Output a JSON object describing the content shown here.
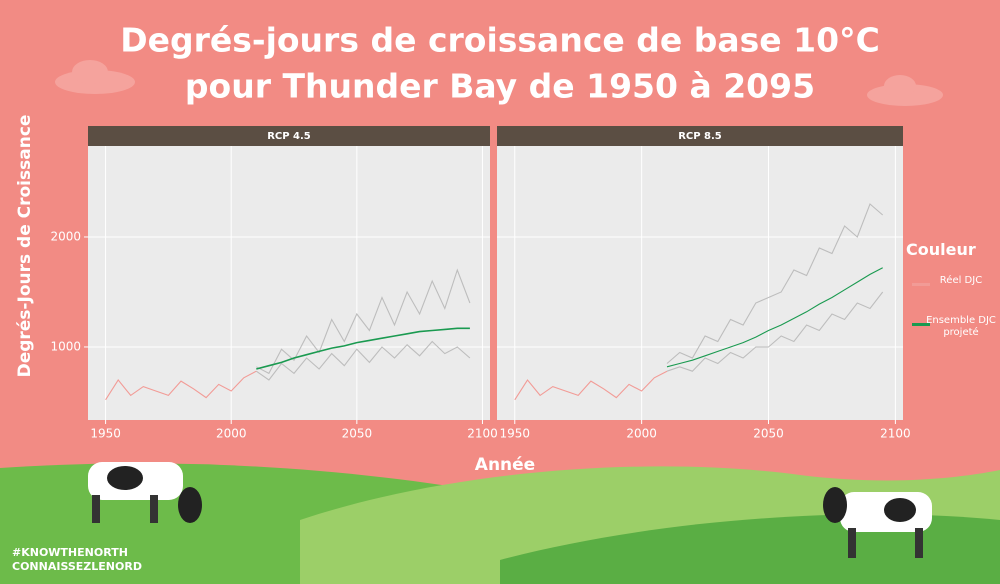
{
  "title": [
    "Degrés-jours de croissance de base 10°C",
    "pour Thunder Bay de 1950 à 2095"
  ],
  "legend_title": "Couleur",
  "branding": [
    "#KNOWTHENORTH",
    "CONNAISSEZLENORD"
  ],
  "chart_data": [
    {
      "type": "line",
      "title": "RCP 4.5",
      "ylabel": "Degrés-Jours de Croissance",
      "xlabel": "Année",
      "x": [
        1950,
        1955,
        1960,
        1965,
        1970,
        1975,
        1980,
        1985,
        1990,
        1995,
        2000,
        2005,
        2010,
        2015,
        2020,
        2025,
        2030,
        2035,
        2040,
        2045,
        2050,
        2055,
        2060,
        2065,
        2070,
        2075,
        2080,
        2085,
        2090,
        2095
      ],
      "xlim": [
        1943,
        2103
      ],
      "xticks": [
        1950,
        2000,
        2050,
        2100
      ],
      "ylim": [
        336,
        2827
      ],
      "yticks": [
        1000,
        2000
      ],
      "grid": true,
      "series": [
        {
          "color": "#bdbdbd",
          "values": [
            null,
            null,
            null,
            null,
            null,
            null,
            null,
            null,
            null,
            null,
            null,
            null,
            820,
            760,
            980,
            880,
            1100,
            950,
            1250,
            1050,
            1300,
            1150,
            1450,
            1200,
            1500,
            1300,
            1600,
            1350,
            1700,
            1400
          ]
        },
        {
          "color": "#bdbdbd",
          "values": [
            null,
            null,
            null,
            null,
            null,
            null,
            null,
            null,
            null,
            null,
            null,
            null,
            780,
            700,
            850,
            760,
            900,
            800,
            940,
            830,
            980,
            860,
            1000,
            900,
            1020,
            920,
            1050,
            940,
            1000,
            900
          ]
        },
        {
          "name": "Réel DJC",
          "color": "#f29b96",
          "values": [
            520,
            700,
            560,
            640,
            600,
            560,
            690,
            620,
            540,
            660,
            600,
            720,
            780,
            null,
            null,
            null,
            null,
            null,
            null,
            null,
            null,
            null,
            null,
            null,
            null,
            null,
            null,
            null,
            null,
            null
          ]
        },
        {
          "name": "Ensemble DJC projeté",
          "color": "#1a9a50",
          "values": [
            null,
            null,
            null,
            null,
            null,
            null,
            null,
            null,
            null,
            null,
            null,
            null,
            800,
            830,
            860,
            900,
            930,
            960,
            990,
            1010,
            1040,
            1060,
            1080,
            1100,
            1120,
            1140,
            1150,
            1160,
            1170,
            1170
          ]
        }
      ]
    },
    {
      "type": "line",
      "title": "RCP 8.5",
      "x": [
        1950,
        1955,
        1960,
        1965,
        1970,
        1975,
        1980,
        1985,
        1990,
        1995,
        2000,
        2005,
        2010,
        2015,
        2020,
        2025,
        2030,
        2035,
        2040,
        2045,
        2050,
        2055,
        2060,
        2065,
        2070,
        2075,
        2080,
        2085,
        2090,
        2095
      ],
      "xlim": [
        1943,
        2103
      ],
      "xticks": [
        1950,
        2000,
        2050,
        2100
      ],
      "ylim": [
        336,
        2827
      ],
      "yticks": [
        1000,
        2000
      ],
      "grid": true,
      "series": [
        {
          "color": "#bdbdbd",
          "values": [
            null,
            null,
            null,
            null,
            null,
            null,
            null,
            null,
            null,
            null,
            null,
            null,
            850,
            950,
            900,
            1100,
            1050,
            1250,
            1200,
            1400,
            1450,
            1500,
            1700,
            1650,
            1900,
            1850,
            2100,
            2000,
            2300,
            2200
          ]
        },
        {
          "color": "#bdbdbd",
          "values": [
            null,
            null,
            null,
            null,
            null,
            null,
            null,
            null,
            null,
            null,
            null,
            null,
            780,
            820,
            780,
            900,
            850,
            950,
            900,
            1000,
            1000,
            1100,
            1050,
            1200,
            1150,
            1300,
            1250,
            1400,
            1350,
            1500
          ]
        },
        {
          "color": "#f29b96",
          "values": [
            520,
            700,
            560,
            640,
            600,
            560,
            690,
            620,
            540,
            660,
            600,
            720,
            780,
            null,
            null,
            null,
            null,
            null,
            null,
            null,
            null,
            null,
            null,
            null,
            null,
            null,
            null,
            null,
            null,
            null
          ]
        },
        {
          "color": "#1a9a50",
          "values": [
            null,
            null,
            null,
            null,
            null,
            null,
            null,
            null,
            null,
            null,
            null,
            null,
            820,
            850,
            880,
            920,
            960,
            1000,
            1040,
            1090,
            1150,
            1200,
            1260,
            1320,
            1390,
            1450,
            1520,
            1590,
            1660,
            1720
          ]
        }
      ]
    }
  ]
}
